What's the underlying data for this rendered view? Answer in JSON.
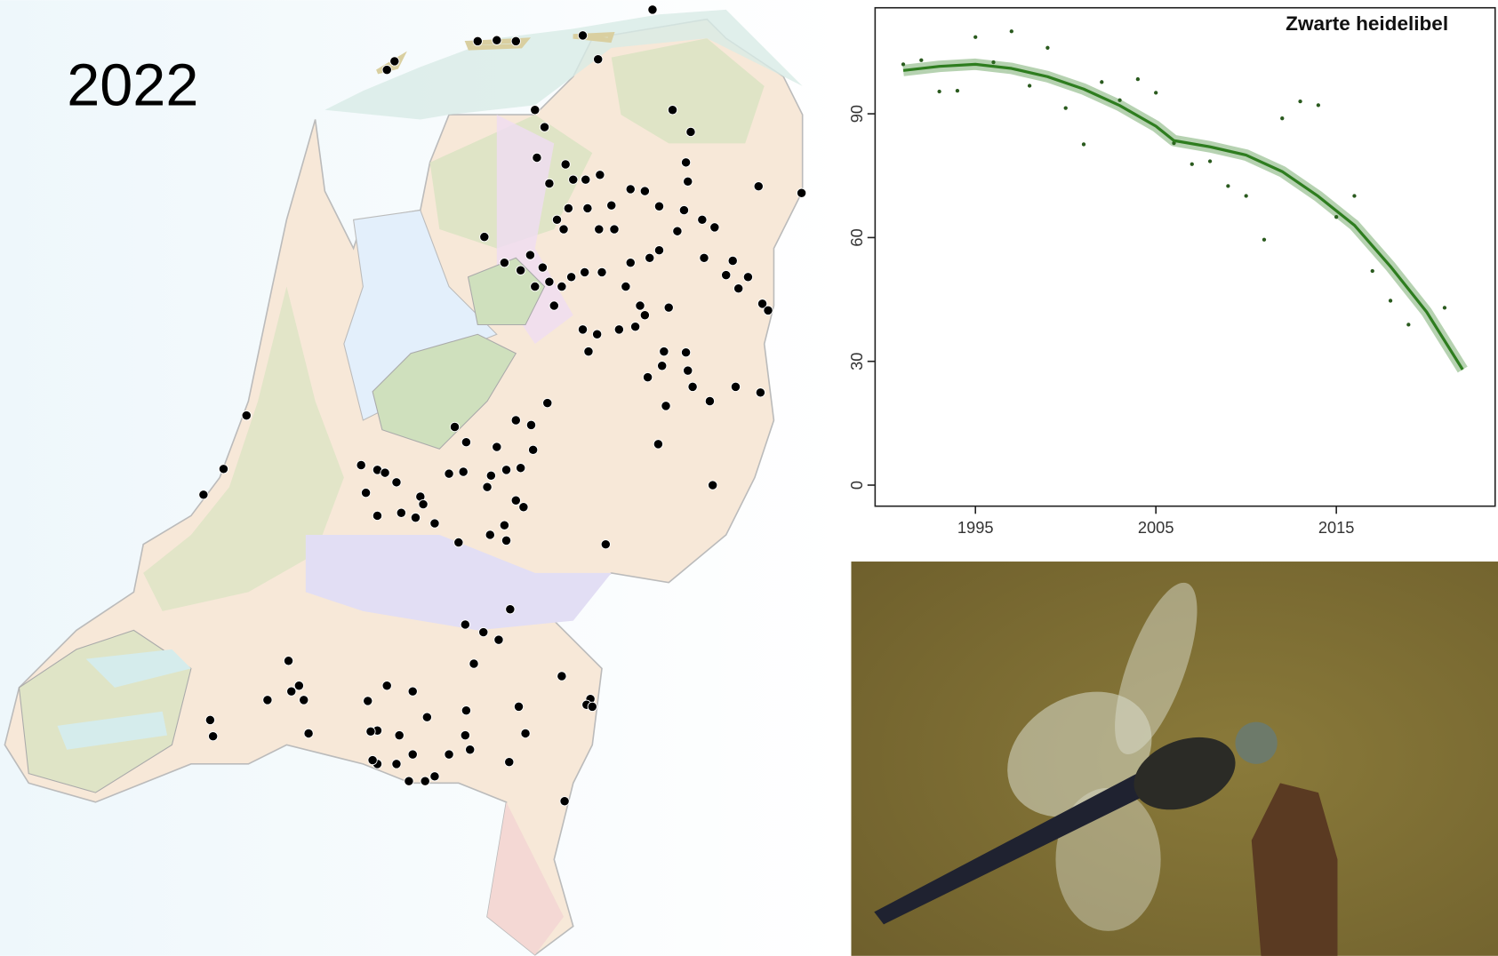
{
  "map": {
    "label": "2022"
  },
  "chart_data": {
    "type": "scatter",
    "title": "Zwarte heidelibel",
    "xlim": [
      1989.44,
      2023.8
    ],
    "xticks": [
      1995,
      2005,
      2015
    ],
    "ylim": [
      -5.1,
      115.7
    ],
    "yticks": [
      0,
      30,
      60,
      90
    ],
    "series": [
      {
        "type": "scatter",
        "color": "#2a5a1e",
        "x": [
          1991,
          1992,
          1993,
          1994,
          1995,
          1996,
          1997,
          1998,
          1999,
          2000,
          2001,
          2002,
          2003,
          2004,
          2005,
          2006,
          2007,
          2008,
          2009,
          2010,
          2011,
          2012,
          2013,
          2014,
          2015,
          2016,
          2017,
          2018,
          2019,
          2021
        ],
        "values": [
          102,
          103,
          95.4,
          95.6,
          108.6,
          102.5,
          110,
          96.8,
          106,
          91.4,
          82.6,
          97.7,
          93.3,
          98.4,
          95.1,
          82.9,
          77.8,
          78.5,
          72.5,
          70.1,
          59.5,
          88.9,
          93,
          92.1,
          65,
          70.1,
          51.9,
          44.7,
          38.9,
          43
        ]
      },
      {
        "type": "line",
        "color": "#2e7d1f",
        "x": [
          1991,
          1993,
          1995,
          1997,
          1999,
          2001,
          2003,
          2005,
          2006,
          2008,
          2010,
          2012,
          2014,
          2016,
          2018,
          2020,
          2022
        ],
        "values": [
          100.5,
          101.5,
          102,
          101,
          99,
          96,
          92,
          87,
          83.5,
          82,
          80,
          76,
          70,
          63,
          53,
          42,
          28
        ]
      }
    ]
  }
}
